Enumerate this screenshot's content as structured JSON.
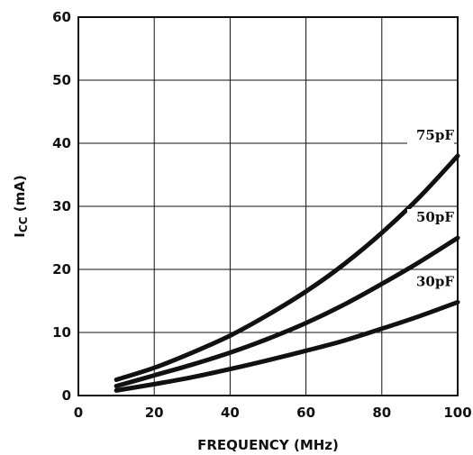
{
  "chart_data": {
    "type": "line",
    "title": "",
    "xlabel": "FREQUENCY (MHz)",
    "ylabel": {
      "main": "I",
      "subscript": "CC",
      "unit": " (mA)"
    },
    "xlim": [
      0,
      100
    ],
    "ylim": [
      0,
      60
    ],
    "x_ticks": [
      0,
      20,
      40,
      60,
      80,
      100
    ],
    "y_ticks": [
      0,
      10,
      20,
      30,
      40,
      50,
      60
    ],
    "grid": true,
    "series": [
      {
        "name": "75pF",
        "x": [
          10,
          20,
          30,
          40,
          50,
          60,
          70,
          80,
          90,
          100
        ],
        "y": [
          2.5,
          4.4,
          6.8,
          9.5,
          12.8,
          16.5,
          20.8,
          25.8,
          31.5,
          38.0
        ]
      },
      {
        "name": "50pF",
        "x": [
          10,
          20,
          30,
          40,
          50,
          60,
          70,
          80,
          90,
          100
        ],
        "y": [
          1.5,
          3.2,
          4.9,
          6.8,
          9.0,
          11.5,
          14.4,
          17.7,
          21.2,
          25.0
        ]
      },
      {
        "name": "30pF",
        "x": [
          10,
          20,
          30,
          40,
          50,
          60,
          70,
          80,
          90,
          100
        ],
        "y": [
          0.8,
          1.8,
          2.9,
          4.2,
          5.6,
          7.1,
          8.7,
          10.6,
          12.6,
          14.8
        ]
      }
    ]
  }
}
